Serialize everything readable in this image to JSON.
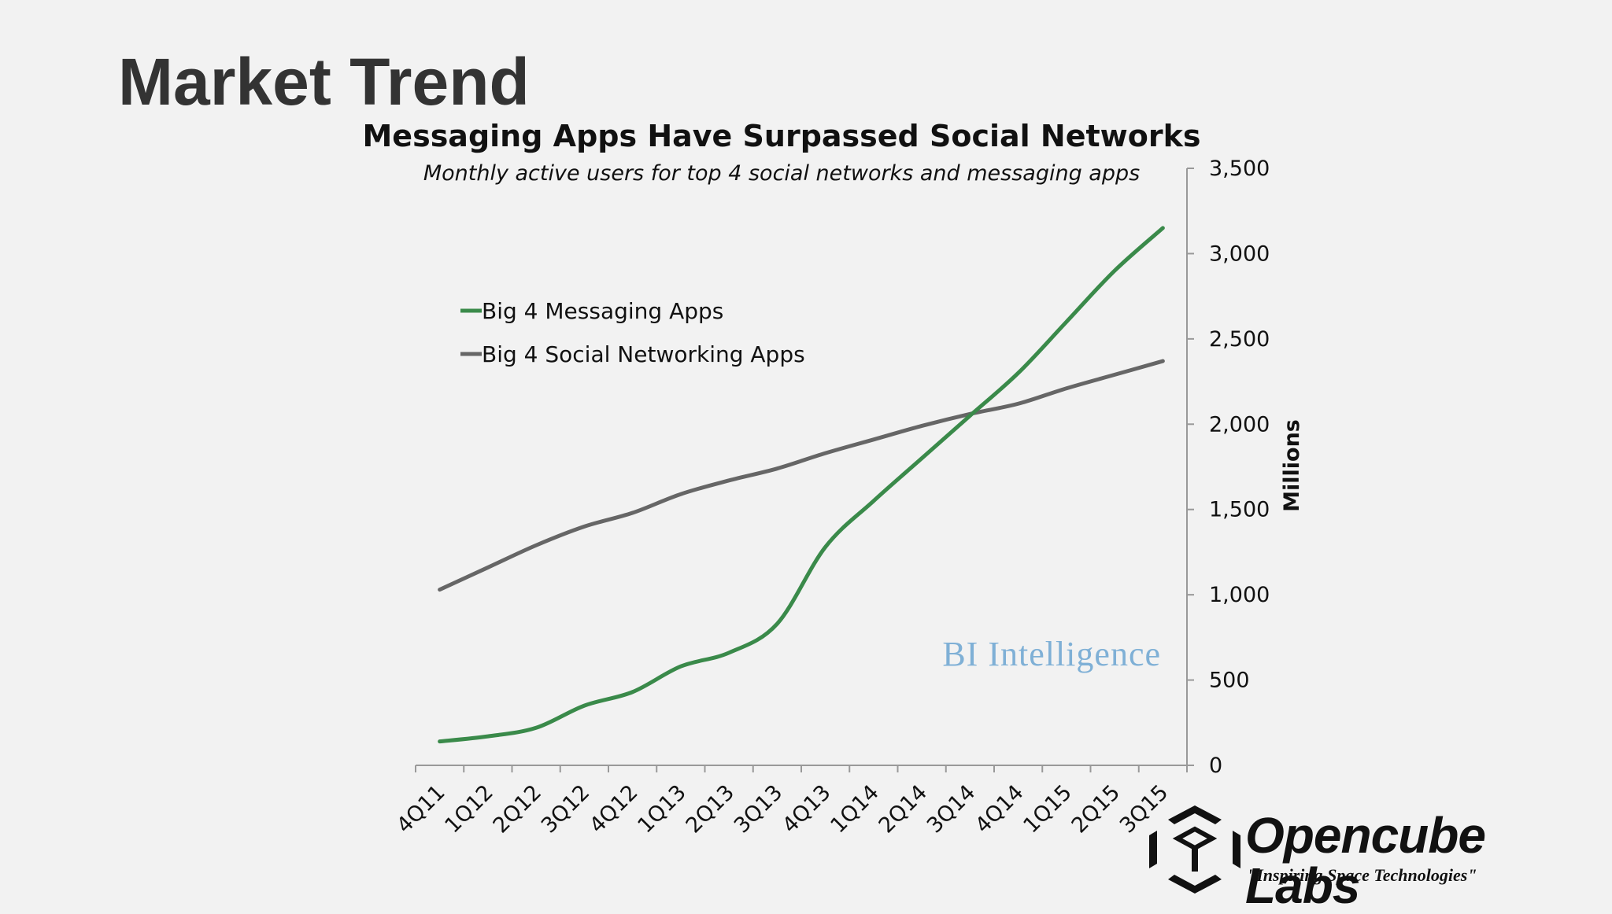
{
  "slide": {
    "title": "Market Trend"
  },
  "chart_data": {
    "type": "line",
    "title": "Messaging Apps Have Surpassed Social Networks",
    "subtitle": "Monthly active users for top 4 social networks and messaging apps",
    "xlabel": "",
    "ylabel": "Millions",
    "categories": [
      "4Q11",
      "1Q12",
      "2Q12",
      "3Q12",
      "4Q12",
      "1Q13",
      "2Q13",
      "3Q13",
      "4Q13",
      "1Q14",
      "2Q14",
      "3Q14",
      "4Q14",
      "1Q15",
      "2Q15",
      "3Q15"
    ],
    "ylim": [
      0,
      3500
    ],
    "yticks": [
      0,
      500,
      1000,
      1500,
      2000,
      2500,
      3000,
      3500
    ],
    "ytick_labels": [
      "0",
      "500",
      "1,000",
      "1,500",
      "2,000",
      "2,500",
      "3,000",
      "3,500"
    ],
    "grid": false,
    "legend_position": "top-left",
    "series": [
      {
        "name": "Big 4 Messaging Apps",
        "color": "#3a8a4a",
        "values": [
          140,
          170,
          220,
          350,
          430,
          580,
          660,
          830,
          1280,
          1550,
          1800,
          2050,
          2300,
          2600,
          2900,
          3150
        ]
      },
      {
        "name": "Big 4 Social Networking Apps",
        "color": "#666666",
        "values": [
          1030,
          1160,
          1290,
          1400,
          1480,
          1590,
          1670,
          1740,
          1830,
          1910,
          1990,
          2060,
          2120,
          2210,
          2290,
          2370
        ]
      }
    ],
    "watermark": "BI Intelligence"
  },
  "logo": {
    "name": "Opencube Labs",
    "tagline": "\"Inspiring Space Technologies\""
  }
}
